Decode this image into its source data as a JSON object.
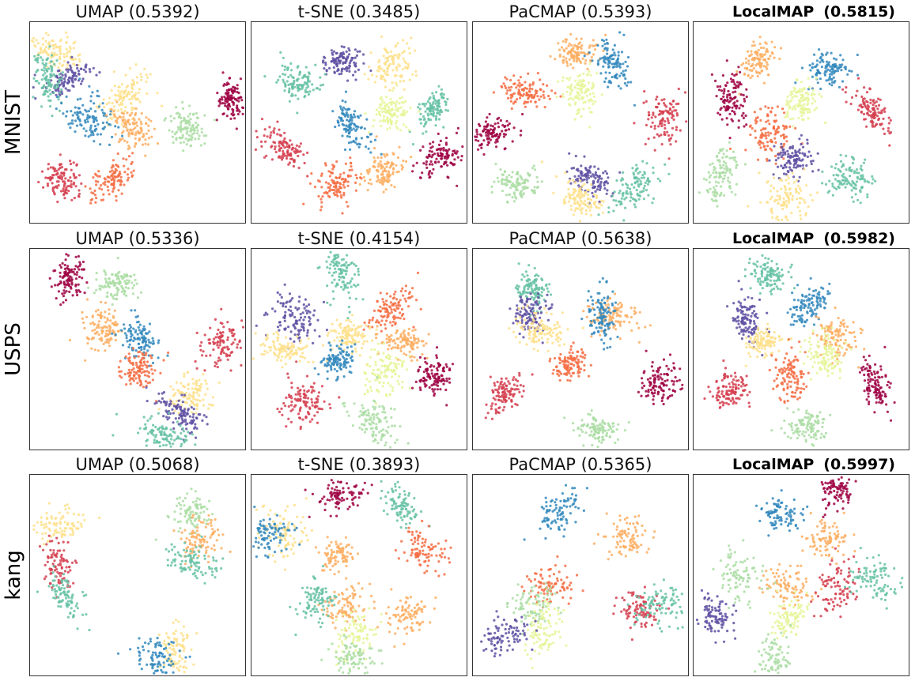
{
  "chart_data": {
    "type": "scatter",
    "rows": [
      {
        "dataset": "MNIST",
        "panels": [
          {
            "method": "UMAP",
            "score": "(0.5392)",
            "best": false
          },
          {
            "method": "t-SNE",
            "score": "(0.3485)",
            "best": false
          },
          {
            "method": "PaCMAP",
            "score": "(0.5393)",
            "best": false
          },
          {
            "method": "LocalMAP",
            "score": "(0.5815)",
            "best": true
          }
        ]
      },
      {
        "dataset": "USPS",
        "panels": [
          {
            "method": "UMAP",
            "score": "(0.5336)",
            "best": false
          },
          {
            "method": "t-SNE",
            "score": "(0.4154)",
            "best": false
          },
          {
            "method": "PaCMAP",
            "score": "(0.5638)",
            "best": false
          },
          {
            "method": "LocalMAP",
            "score": "(0.5982)",
            "best": true
          }
        ]
      },
      {
        "dataset": "kang",
        "panels": [
          {
            "method": "UMAP",
            "score": "(0.5068)",
            "best": false
          },
          {
            "method": "t-SNE",
            "score": "(0.3893)",
            "best": false
          },
          {
            "method": "PaCMAP",
            "score": "(0.5365)",
            "best": false
          },
          {
            "method": "LocalMAP",
            "score": "(0.5997)",
            "best": true
          }
        ]
      }
    ],
    "palette": [
      "#9e0142",
      "#d53e4f",
      "#f46d43",
      "#fdae61",
      "#fee08b",
      "#e6f598",
      "#abdda4",
      "#66c2a5",
      "#3288bd",
      "#5e4fa2"
    ],
    "clusters": [
      [
        [
          [
            0.12,
            0.15,
            "#fee08b"
          ],
          [
            0.18,
            0.28,
            "#5e4fa2"
          ],
          [
            0.08,
            0.28,
            "#66c2a5"
          ],
          [
            0.45,
            0.38,
            "#fee08b"
          ],
          [
            0.27,
            0.48,
            "#3288bd"
          ],
          [
            0.48,
            0.53,
            "#fdae61"
          ],
          [
            0.93,
            0.38,
            "#9e0142"
          ],
          [
            0.73,
            0.53,
            "#abdda4"
          ],
          [
            0.15,
            0.78,
            "#d53e4f"
          ],
          [
            0.39,
            0.78,
            "#f46d43"
          ]
        ],
        [
          [
            0.43,
            0.2,
            "#5e4fa2"
          ],
          [
            0.21,
            0.3,
            "#66c2a5"
          ],
          [
            0.65,
            0.22,
            "#fee08b"
          ],
          [
            0.85,
            0.43,
            "#66c2a5"
          ],
          [
            0.65,
            0.45,
            "#e6f598"
          ],
          [
            0.47,
            0.52,
            "#3288bd"
          ],
          [
            0.15,
            0.63,
            "#d53e4f"
          ],
          [
            0.88,
            0.68,
            "#9e0142"
          ],
          [
            0.62,
            0.73,
            "#fdae61"
          ],
          [
            0.4,
            0.8,
            "#f46d43"
          ]
        ],
        [
          [
            0.48,
            0.15,
            "#fdae61"
          ],
          [
            0.64,
            0.2,
            "#3288bd"
          ],
          [
            0.25,
            0.35,
            "#f46d43"
          ],
          [
            0.5,
            0.35,
            "#e6f598"
          ],
          [
            0.09,
            0.55,
            "#9e0142"
          ],
          [
            0.88,
            0.48,
            "#d53e4f"
          ],
          [
            0.21,
            0.8,
            "#abdda4"
          ],
          [
            0.55,
            0.78,
            "#5e4fa2"
          ],
          [
            0.5,
            0.88,
            "#fee08b"
          ],
          [
            0.75,
            0.83,
            "#66c2a5"
          ]
        ],
        [
          [
            0.3,
            0.19,
            "#fdae61"
          ],
          [
            0.63,
            0.24,
            "#3288bd"
          ],
          [
            0.5,
            0.39,
            "#e6f598"
          ],
          [
            0.18,
            0.38,
            "#9e0142"
          ],
          [
            0.82,
            0.44,
            "#d53e4f"
          ],
          [
            0.35,
            0.55,
            "#f46d43"
          ],
          [
            0.47,
            0.68,
            "#5e4fa2"
          ],
          [
            0.73,
            0.78,
            "#66c2a5"
          ],
          [
            0.13,
            0.78,
            "#abdda4"
          ],
          [
            0.44,
            0.88,
            "#fee08b"
          ]
        ]
      ],
      [
        [
          [
            0.18,
            0.15,
            "#9e0142"
          ],
          [
            0.41,
            0.17,
            "#abdda4"
          ],
          [
            0.34,
            0.4,
            "#fdae61"
          ],
          [
            0.51,
            0.45,
            "#3288bd"
          ],
          [
            0.9,
            0.47,
            "#d53e4f"
          ],
          [
            0.51,
            0.6,
            "#f46d43"
          ],
          [
            0.74,
            0.73,
            "#fee08b"
          ],
          [
            0.7,
            0.82,
            "#5e4fa2"
          ],
          [
            0.62,
            0.93,
            "#66c2a5"
          ]
        ],
        [
          [
            0.42,
            0.13,
            "#66c2a5"
          ],
          [
            0.21,
            0.35,
            "#5e4fa2"
          ],
          [
            0.65,
            0.3,
            "#f46d43"
          ],
          [
            0.16,
            0.5,
            "#fee08b"
          ],
          [
            0.46,
            0.43,
            "#fee08b"
          ],
          [
            0.4,
            0.55,
            "#3288bd"
          ],
          [
            0.71,
            0.47,
            "#fdae61"
          ],
          [
            0.63,
            0.62,
            "#e6f598"
          ],
          [
            0.85,
            0.64,
            "#9e0142"
          ],
          [
            0.24,
            0.77,
            "#d53e4f"
          ],
          [
            0.57,
            0.86,
            "#abdda4"
          ]
        ],
        [
          [
            0.28,
            0.2,
            "#66c2a5"
          ],
          [
            0.27,
            0.32,
            "#5e4fa2"
          ],
          [
            0.3,
            0.4,
            "#fee08b"
          ],
          [
            0.65,
            0.33,
            "#fdae61"
          ],
          [
            0.6,
            0.33,
            "#3288bd"
          ],
          [
            0.45,
            0.58,
            "#f46d43"
          ],
          [
            0.15,
            0.72,
            "#d53e4f"
          ],
          [
            0.88,
            0.67,
            "#9e0142"
          ],
          [
            0.58,
            0.9,
            "#abdda4"
          ]
        ],
        [
          [
            0.35,
            0.13,
            "#66c2a5"
          ],
          [
            0.54,
            0.28,
            "#3288bd"
          ],
          [
            0.25,
            0.36,
            "#5e4fa2"
          ],
          [
            0.33,
            0.46,
            "#fee08b"
          ],
          [
            0.67,
            0.44,
            "#fdae61"
          ],
          [
            0.6,
            0.52,
            "#e6f598"
          ],
          [
            0.45,
            0.63,
            "#f46d43"
          ],
          [
            0.17,
            0.7,
            "#d53e4f"
          ],
          [
            0.84,
            0.68,
            "#9e0142"
          ],
          [
            0.53,
            0.88,
            "#abdda4"
          ]
        ]
      ],
      [
        [
          [
            0.13,
            0.25,
            "#fee08b"
          ],
          [
            0.13,
            0.45,
            "#d53e4f"
          ],
          [
            0.16,
            0.6,
            "#66c2a5"
          ],
          [
            0.75,
            0.18,
            "#abdda4"
          ],
          [
            0.8,
            0.33,
            "#fdae61"
          ],
          [
            0.75,
            0.43,
            "#66c2a5"
          ],
          [
            0.68,
            0.88,
            "#fee08b"
          ],
          [
            0.6,
            0.92,
            "#3288bd"
          ]
        ],
        [
          [
            0.42,
            0.1,
            "#9e0142"
          ],
          [
            0.7,
            0.15,
            "#66c2a5"
          ],
          [
            0.15,
            0.3,
            "#fee08b"
          ],
          [
            0.08,
            0.3,
            "#3288bd"
          ],
          [
            0.4,
            0.4,
            "#fdae61"
          ],
          [
            0.44,
            0.65,
            "#fdae61"
          ],
          [
            0.8,
            0.37,
            "#f46d43"
          ],
          [
            0.29,
            0.62,
            "#66c2a5"
          ],
          [
            0.47,
            0.82,
            "#e6f598"
          ],
          [
            0.73,
            0.7,
            "#fdae61"
          ],
          [
            0.48,
            0.93,
            "#abdda4"
          ]
        ],
        [
          [
            0.4,
            0.18,
            "#3288bd"
          ],
          [
            0.71,
            0.31,
            "#fdae61"
          ],
          [
            0.36,
            0.56,
            "#f46d43"
          ],
          [
            0.28,
            0.65,
            "#abdda4"
          ],
          [
            0.33,
            0.77,
            "#e6f598"
          ],
          [
            0.78,
            0.67,
            "#d53e4f"
          ],
          [
            0.86,
            0.65,
            "#66c2a5"
          ],
          [
            0.15,
            0.8,
            "#5e4fa2"
          ]
        ],
        [
          [
            0.66,
            0.08,
            "#9e0142"
          ],
          [
            0.4,
            0.2,
            "#3288bd"
          ],
          [
            0.63,
            0.32,
            "#fdae61"
          ],
          [
            0.44,
            0.56,
            "#fdae61"
          ],
          [
            0.22,
            0.52,
            "#abdda4"
          ],
          [
            0.44,
            0.72,
            "#e6f598"
          ],
          [
            0.67,
            0.56,
            "#d53e4f"
          ],
          [
            0.85,
            0.52,
            "#66c2a5"
          ],
          [
            0.1,
            0.7,
            "#5e4fa2"
          ],
          [
            0.37,
            0.93,
            "#abdda4"
          ]
        ]
      ]
    ]
  }
}
